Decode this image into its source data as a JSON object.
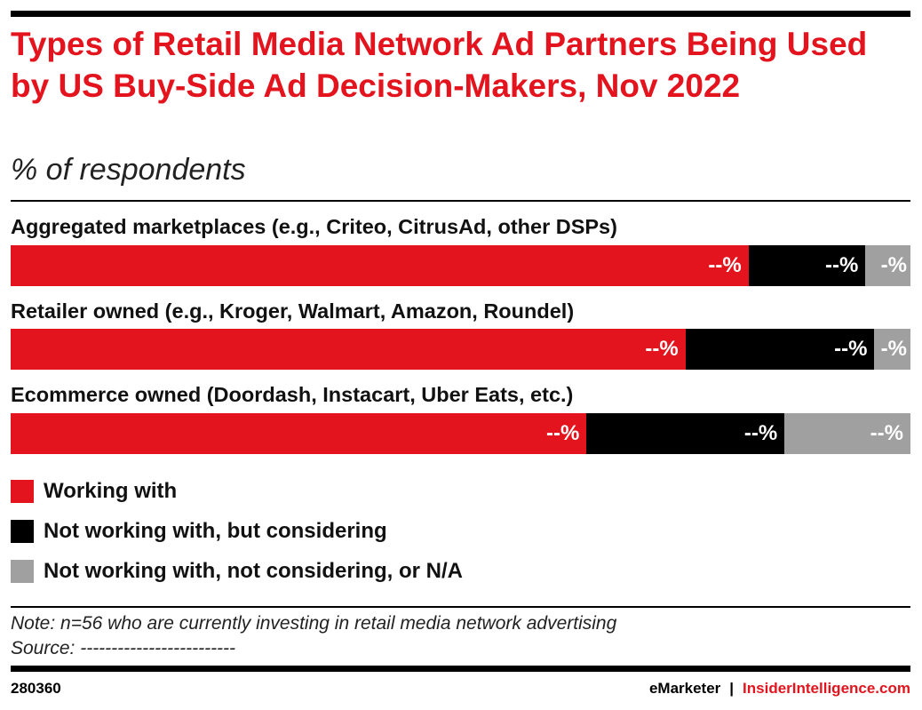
{
  "title": "Types of Retail Media Network Ad Partners Being Used by US Buy-Side Ad Decision-Makers, Nov 2022",
  "subtitle": "% of respondents",
  "colors": {
    "working": "#e3141d",
    "considering": "#000000",
    "not": "#a0a0a0",
    "title": "#e3141d"
  },
  "chart_data": {
    "type": "bar",
    "orientation": "horizontal-stacked-100",
    "categories": [
      "Aggregated marketplaces (e.g., Criteo, CitrusAd, other DSPs)",
      "Retailer owned (e.g., Kroger, Walmart, Amazon, Roundel)",
      "Ecommerce owned (Doordash, Instacart, Uber Eats, etc.)"
    ],
    "series": [
      {
        "name": "Working with",
        "values": [
          82,
          75,
          64
        ],
        "labels": [
          "--%",
          "--%",
          "--%"
        ]
      },
      {
        "name": "Not working with, but considering",
        "values": [
          13,
          21,
          22
        ],
        "labels": [
          "--%",
          "--%",
          "--%"
        ]
      },
      {
        "name": "Not working with, not considering, or N/A",
        "values": [
          5,
          4,
          14
        ],
        "labels": [
          "-%",
          "-%",
          "--%"
        ]
      }
    ],
    "xlim": [
      0,
      100
    ],
    "legend": "bottom"
  },
  "note": "Note: n=56 who are currently investing in retail media network advertising",
  "source": "Source: -------------------------",
  "footer": {
    "id": "280360",
    "brand1": "eMarketer",
    "sep": "|",
    "brand2": "InsiderIntelligence.com"
  }
}
